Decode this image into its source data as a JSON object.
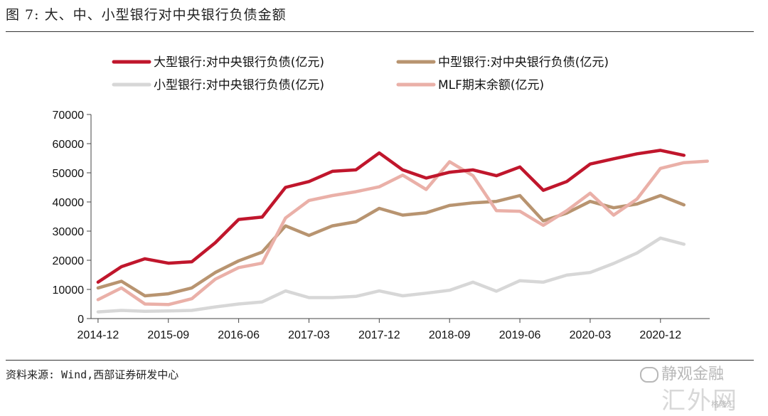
{
  "header": {
    "title": "图 7: 大、中、小型银行对中央银行负债金额"
  },
  "footer": {
    "source": "资料来源: Wind,西部证券研发中心"
  },
  "watermarks": {
    "brand": "静观金融",
    "site": "汇外网",
    "small": "格隆汇"
  },
  "chart_data": {
    "type": "line",
    "title": "大、中、小型银行对中央银行负债金额",
    "xlabel": "",
    "ylabel": "",
    "ylim": [
      0,
      70000
    ],
    "yticks": [
      "0",
      "10000",
      "20000",
      "30000",
      "40000",
      "50000",
      "60000",
      "70000"
    ],
    "x": [
      "2014-12",
      "2015-03",
      "2015-06",
      "2015-09",
      "2015-12",
      "2016-03",
      "2016-06",
      "2016-09",
      "2016-12",
      "2017-03",
      "2017-06",
      "2017-09",
      "2017-12",
      "2018-03",
      "2018-06",
      "2018-09",
      "2018-12",
      "2019-03",
      "2019-06",
      "2019-09",
      "2019-12",
      "2020-03",
      "2020-06",
      "2020-09",
      "2020-12",
      "2021-03",
      "2021-06"
    ],
    "xticks": [
      "2014-12",
      "2015-09",
      "2016-06",
      "2017-03",
      "2017-12",
      "2018-09",
      "2019-06",
      "2020-03",
      "2020-12"
    ],
    "series": [
      {
        "name": "大型银行:对中央银行负债(亿元)",
        "color": "#c0162c",
        "values": [
          12500,
          17800,
          20500,
          19000,
          19500,
          26000,
          34000,
          34800,
          45000,
          47000,
          50500,
          51000,
          56800,
          51000,
          48200,
          50200,
          51000,
          49000,
          52000,
          44000,
          47000,
          53000,
          54800,
          56500,
          57700,
          56000,
          null
        ]
      },
      {
        "name": "中型银行:对中央银行负债(亿元)",
        "color": "#b89470",
        "values": [
          10500,
          12800,
          7800,
          8500,
          10500,
          15800,
          19800,
          22800,
          31800,
          28500,
          31800,
          33200,
          37800,
          35500,
          36300,
          38800,
          39700,
          40200,
          42200,
          33500,
          36200,
          40200,
          38000,
          39300,
          42200,
          39000,
          null
        ]
      },
      {
        "name": "小型银行:对中央银行负债(亿元)",
        "color": "#d7d7d7",
        "values": [
          2300,
          2800,
          2500,
          2600,
          2800,
          4000,
          5000,
          5700,
          9500,
          7200,
          7200,
          7600,
          9500,
          7800,
          8700,
          9700,
          12500,
          9400,
          13000,
          12500,
          14900,
          15800,
          18900,
          22500,
          27600,
          25500,
          null
        ]
      },
      {
        "name": "MLF期末余额(亿元)",
        "color": "#eab0a8",
        "values": [
          6500,
          10500,
          5000,
          4800,
          6800,
          13500,
          17500,
          19000,
          34500,
          40500,
          42200,
          43500,
          45200,
          49200,
          44300,
          53800,
          49000,
          37000,
          36800,
          32000,
          37000,
          43000,
          35500,
          41000,
          51500,
          53500,
          54000
        ]
      }
    ],
    "legend_position": "top"
  }
}
